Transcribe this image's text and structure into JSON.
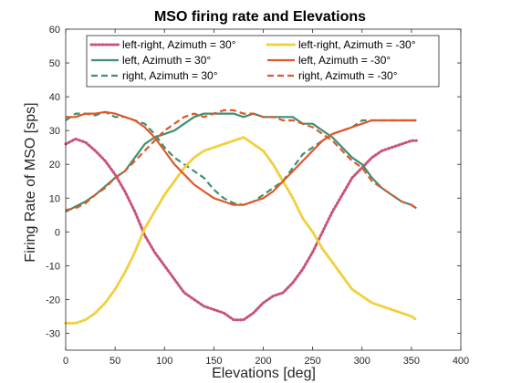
{
  "chart_data": {
    "type": "line",
    "title": "MSO firing rate and Elevations",
    "xlabel": "Elevations [deg]",
    "ylabel": "Firing Rate of MSO [sps]",
    "xlim": [
      0,
      400
    ],
    "ylim": [
      -35,
      60
    ],
    "xticks": [
      0,
      50,
      100,
      150,
      200,
      250,
      300,
      350,
      400
    ],
    "yticks": [
      -30,
      -20,
      -10,
      0,
      10,
      20,
      30,
      40,
      50,
      60
    ],
    "grid": false,
    "legend_location": "top",
    "x": [
      0,
      10,
      20,
      30,
      40,
      50,
      60,
      70,
      80,
      90,
      100,
      110,
      120,
      130,
      140,
      150,
      160,
      170,
      180,
      190,
      200,
      210,
      220,
      230,
      240,
      250,
      260,
      270,
      280,
      290,
      300,
      310,
      320,
      330,
      340,
      350,
      355
    ],
    "series": [
      {
        "name": "left-right, Azimuth = 30°",
        "color": "#c8527a",
        "dash": "dotted",
        "values": [
          26,
          27.5,
          26.5,
          24,
          21,
          17,
          12,
          6,
          -1,
          -6,
          -10,
          -14,
          -18,
          -20,
          -22,
          -23,
          -24,
          -26,
          -26,
          -24,
          -21,
          -19,
          -18,
          -15,
          -11,
          -6,
          0,
          6,
          11,
          16,
          19,
          22,
          24,
          25,
          26,
          27,
          27
        ]
      },
      {
        "name": "left, Azimuth = 30°",
        "color": "#3f8f70",
        "dash": "solid",
        "values": [
          6,
          7.5,
          9,
          11,
          13.5,
          16,
          18,
          22,
          26,
          28,
          29,
          30,
          32,
          34,
          35,
          35,
          35,
          35,
          34,
          35,
          34,
          34,
          34,
          34,
          32,
          32,
          30,
          28,
          25,
          22,
          20,
          16,
          13,
          11,
          9,
          8,
          7
        ]
      },
      {
        "name": "right, Azimuth = 30°",
        "color": "#3f8f70",
        "dash": "dashed",
        "values": [
          33,
          35,
          35,
          34.5,
          35.5,
          34,
          34,
          33,
          32,
          29,
          25,
          22,
          20,
          18,
          16,
          12.5,
          10,
          8.5,
          8,
          9,
          11,
          13,
          15,
          19,
          23,
          25,
          27,
          29,
          30,
          31,
          33,
          33,
          33,
          33,
          33,
          33,
          33
        ]
      },
      {
        "name": "left-right, Azimuth = -30°",
        "color": "#f0d03c",
        "dash": "dotted",
        "values": [
          -27,
          -27,
          -26,
          -24,
          -21,
          -17,
          -12,
          -6,
          1,
          6,
          11,
          15,
          19,
          22,
          24,
          25,
          26,
          27,
          28,
          26,
          24,
          20,
          15,
          10,
          4,
          0,
          -5,
          -9,
          -13,
          -17,
          -19,
          -21,
          -22,
          -23,
          -24,
          -25,
          -26
        ]
      },
      {
        "name": "left, Azimuth = -30°",
        "color": "#e0572a",
        "dash": "solid",
        "values": [
          34,
          34,
          35,
          35,
          35.5,
          35,
          34,
          33,
          31,
          28,
          24,
          20,
          17,
          14,
          12,
          10,
          9,
          8,
          8,
          9,
          10,
          12,
          15,
          18,
          21,
          24,
          27,
          29,
          30,
          31,
          32,
          33,
          33,
          33,
          33,
          33,
          33
        ]
      },
      {
        "name": "right, Azimuth = -30°",
        "color": "#e0572a",
        "dash": "dashed",
        "values": [
          6.5,
          7,
          8.5,
          11,
          13,
          16,
          18,
          21,
          24,
          27,
          30,
          32,
          34,
          35,
          34,
          35,
          36,
          36,
          35,
          35,
          34,
          34,
          33,
          33,
          32,
          31,
          29,
          27,
          24,
          21,
          19,
          15,
          13,
          11,
          9,
          8,
          7
        ]
      }
    ]
  }
}
